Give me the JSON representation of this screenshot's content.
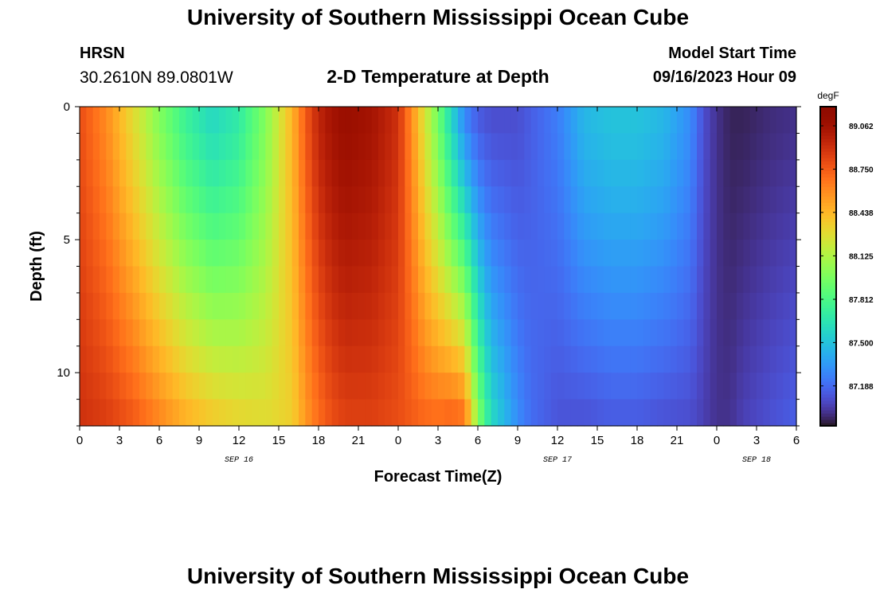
{
  "header": {
    "title": "University of Southern Mississippi Ocean Cube",
    "station": "HRSN",
    "coordinates": "30.2610N  89.0801W",
    "subtitle": "2-D Temperature at Depth",
    "model_start_label": "Model Start Time",
    "model_start_value": "09/16/2023 Hour 09"
  },
  "footer": {
    "title": "University of Southern Mississippi Ocean Cube"
  },
  "chart_data": {
    "type": "heatmap",
    "xlabel": "Forecast Time(Z)",
    "ylabel": "Depth (ft)",
    "x_tick_labels": [
      "0",
      "3",
      "6",
      "9",
      "12",
      "15",
      "18",
      "21",
      "0",
      "3",
      "6",
      "9",
      "12",
      "15",
      "18",
      "21",
      "0",
      "3",
      "6"
    ],
    "x_range_hours_from_sep16_00z": [
      0,
      54
    ],
    "date_labels": [
      {
        "label": "SEP 16",
        "at_hour": 12
      },
      {
        "label": "SEP 17",
        "at_hour": 36
      },
      {
        "label": "SEP 18",
        "at_hour": 51
      }
    ],
    "y_tick_labels": [
      "0",
      "5",
      "10"
    ],
    "y_range_ft": [
      0,
      12
    ],
    "y_inverted": true,
    "colorbar": {
      "unit": "degF",
      "min": 86.9,
      "max": 89.2,
      "tick_labels": [
        "89.062",
        "88.750",
        "88.438",
        "88.125",
        "87.812",
        "87.500",
        "87.188"
      ],
      "tick_values": [
        89.062,
        88.75,
        88.438,
        88.125,
        87.812,
        87.5,
        87.188
      ],
      "colormap": "turbo"
    },
    "time_key_hours": [
      0,
      2,
      4,
      6,
      8,
      10,
      12,
      14,
      16,
      17,
      18,
      19,
      20,
      22,
      24,
      25,
      26,
      27,
      28,
      29,
      30,
      31,
      32,
      33,
      34,
      36,
      38,
      40,
      42,
      44,
      46,
      47,
      48,
      49,
      50,
      52,
      54
    ],
    "depth_layers_ft": [
      0,
      1,
      2,
      3,
      4,
      5,
      6,
      7,
      8,
      9,
      10,
      11
    ],
    "surface_temp_degF": [
      88.8,
      88.6,
      88.3,
      88.0,
      87.75,
      87.6,
      87.7,
      88.0,
      88.45,
      88.75,
      88.95,
      89.05,
      89.1,
      89.05,
      88.9,
      88.6,
      88.25,
      87.95,
      87.6,
      87.3,
      87.15,
      87.1,
      87.1,
      87.1,
      87.15,
      87.25,
      87.45,
      87.5,
      87.5,
      87.45,
      87.3,
      87.1,
      87.0,
      86.95,
      86.95,
      86.98,
      87.0
    ],
    "bottom_temp_degF": [
      88.9,
      88.85,
      88.75,
      88.6,
      88.45,
      88.35,
      88.3,
      88.28,
      88.35,
      88.55,
      88.7,
      88.8,
      88.85,
      88.85,
      88.8,
      88.75,
      88.7,
      88.68,
      88.7,
      88.65,
      88.0,
      87.6,
      87.45,
      87.3,
      87.2,
      87.12,
      87.12,
      87.15,
      87.15,
      87.12,
      87.1,
      87.05,
      87.0,
      87.0,
      87.05,
      87.1,
      87.15
    ]
  }
}
